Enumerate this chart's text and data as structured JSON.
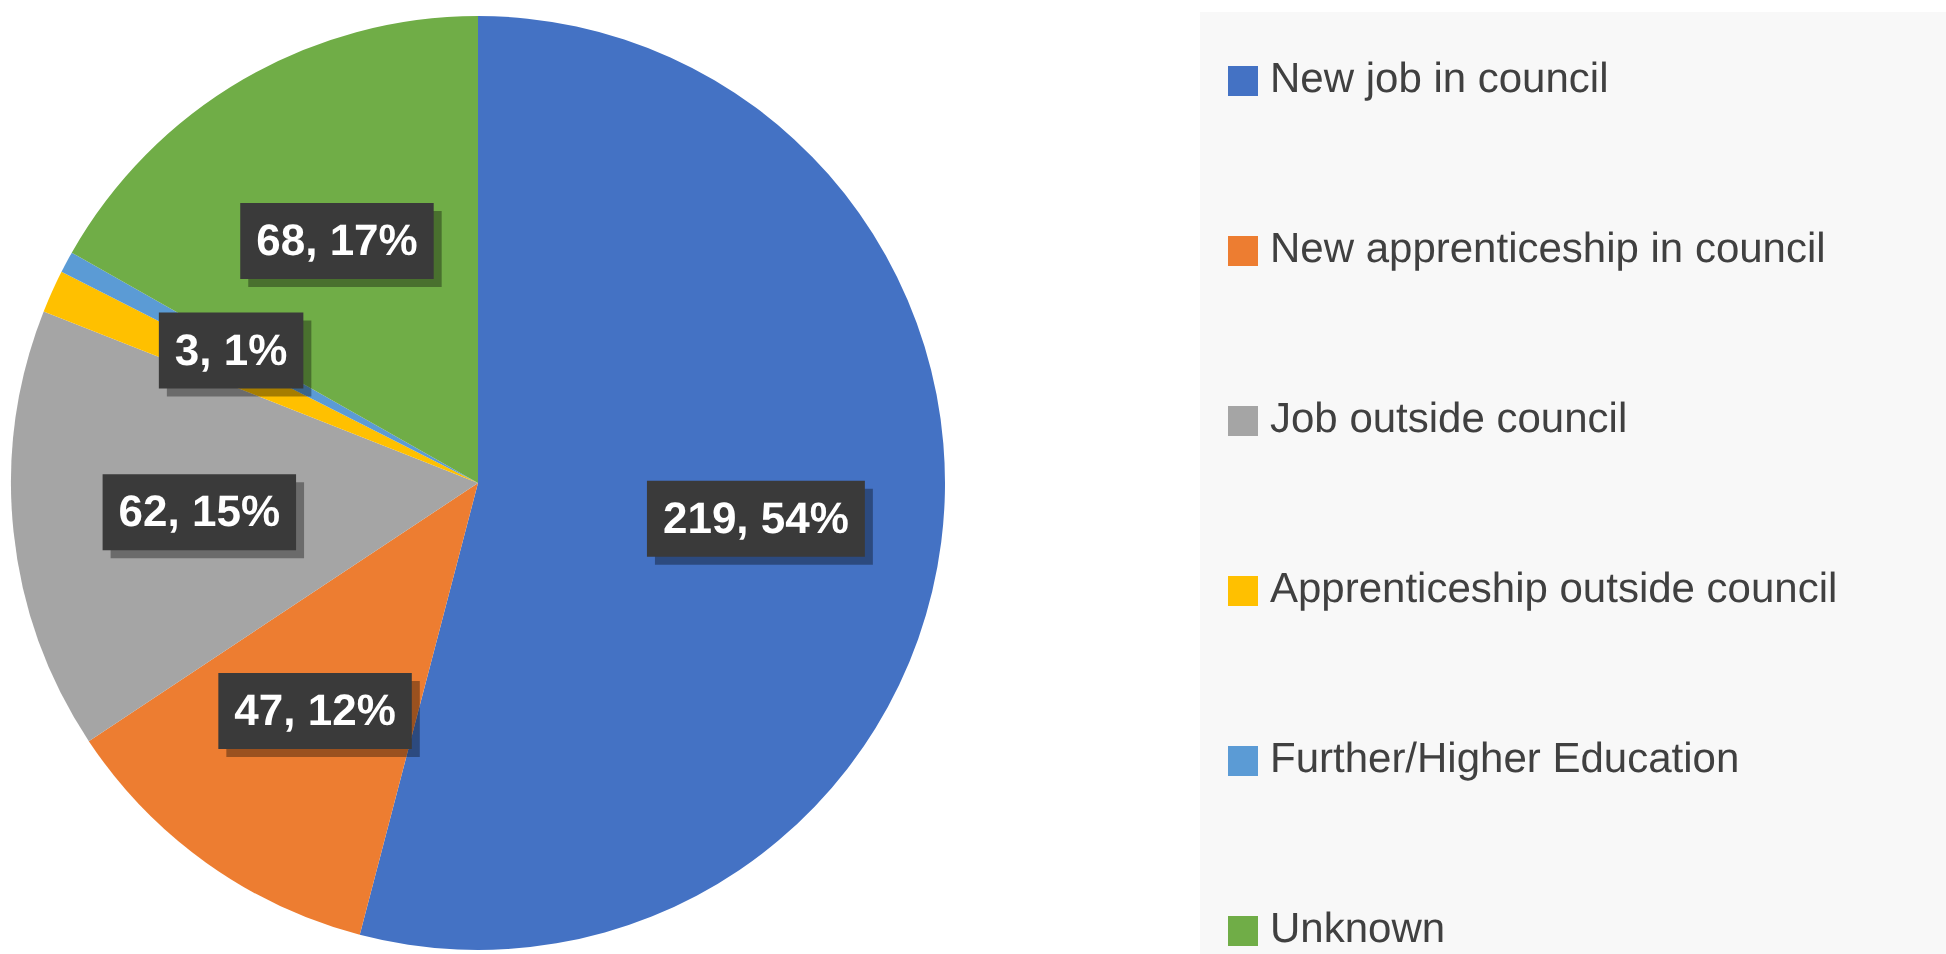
{
  "chart_data": {
    "type": "pie",
    "categories": [
      "New job in council",
      "New apprenticeship in council",
      "Job outside council",
      "Apprenticeship outside council",
      "Further/Higher Education",
      "Unknown"
    ],
    "values": [
      219,
      47,
      62,
      6,
      3,
      68
    ],
    "colors": [
      "#4472c4",
      "#ed7d31",
      "#a5a5a5",
      "#ffc000",
      "#5b9bd5",
      "#70ad47"
    ],
    "value_labels": [
      "219, 54%",
      "47, 12%",
      "62, 15%",
      null,
      "3, 1%",
      "68, 17%"
    ],
    "legend": "right"
  }
}
